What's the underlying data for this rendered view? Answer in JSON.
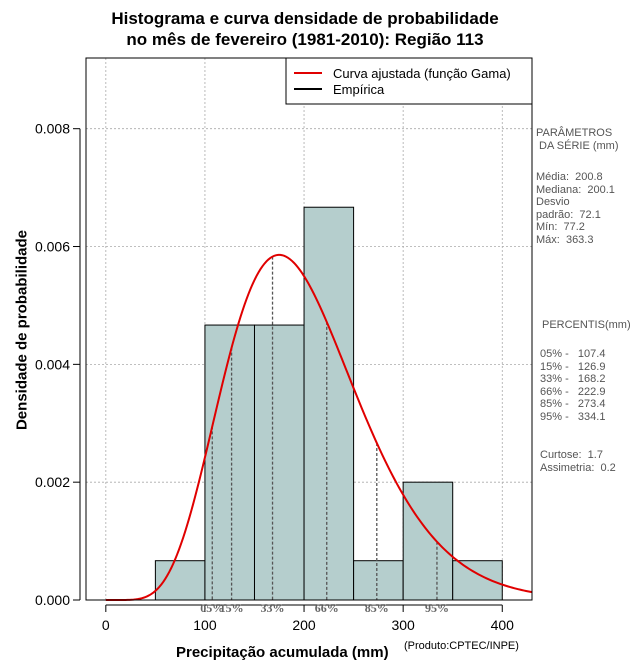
{
  "chart_data": {
    "type": "histogram",
    "title": [
      "Histograma e curva densidade de probabilidade",
      "no mês de fevereiro (1981-2010): Região 113"
    ],
    "xlabel": "Precipitação acumulada (mm)",
    "ylabel": "Densidade de probabilidade",
    "xlim": [
      -20,
      430
    ],
    "ylim": [
      0,
      0.0092
    ],
    "xticks": [
      "0",
      "100",
      "200",
      "300",
      "400"
    ],
    "yticks": [
      "0.000",
      "0.002",
      "0.004",
      "0.006",
      "0.008"
    ],
    "bins": [
      {
        "from": 50,
        "to": 100,
        "density": 0.000667
      },
      {
        "from": 100,
        "to": 150,
        "density": 0.004667
      },
      {
        "from": 150,
        "to": 200,
        "density": 0.004667
      },
      {
        "from": 200,
        "to": 250,
        "density": 0.006667
      },
      {
        "from": 250,
        "to": 300,
        "density": 0.000667
      },
      {
        "from": 300,
        "to": 350,
        "density": 0.002
      },
      {
        "from": 350,
        "to": 400,
        "density": 0.000667
      }
    ],
    "gamma_fit": {
      "shape": 7.76,
      "scale": 25.87
    },
    "legend": {
      "position": "top-right",
      "entries": [
        {
          "label": "Curva ajustada (função Gama)",
          "color": "#e00000"
        },
        {
          "label": "Empírica",
          "color": "#000000"
        }
      ]
    },
    "percentile_lines": [
      {
        "label": "05%",
        "x": 107.4
      },
      {
        "label": "15%",
        "x": 126.9
      },
      {
        "label": "33%",
        "x": 168.2
      },
      {
        "label": "66%",
        "x": 222.9
      },
      {
        "label": "85%",
        "x": 273.4
      },
      {
        "label": "95%",
        "x": 334.1
      }
    ],
    "colors": {
      "bar_fill": "#b5cecd",
      "curve": "#e00000",
      "grid": "#aaaaaa",
      "pct_text": "#666666"
    }
  },
  "stats": {
    "heading": "PARÂMETROS\n DA SÉRIE (mm)",
    "body": "Média:  200.8\nMediana:  200.1\nDesvio\npadrão:  72.1\nMín:  77.2\nMáx:  363.3"
  },
  "percentis": {
    "heading": "PERCENTIS(mm)",
    "body": "05% -   107.4\n15% -   126.9\n33% -   168.2\n66% -   222.9\n85% -   273.4\n95% -   334.1",
    "extra": "Curtose:  1.7\nAssimetria:  0.2"
  },
  "credit": "(Produto:CPTEC/INPE)"
}
